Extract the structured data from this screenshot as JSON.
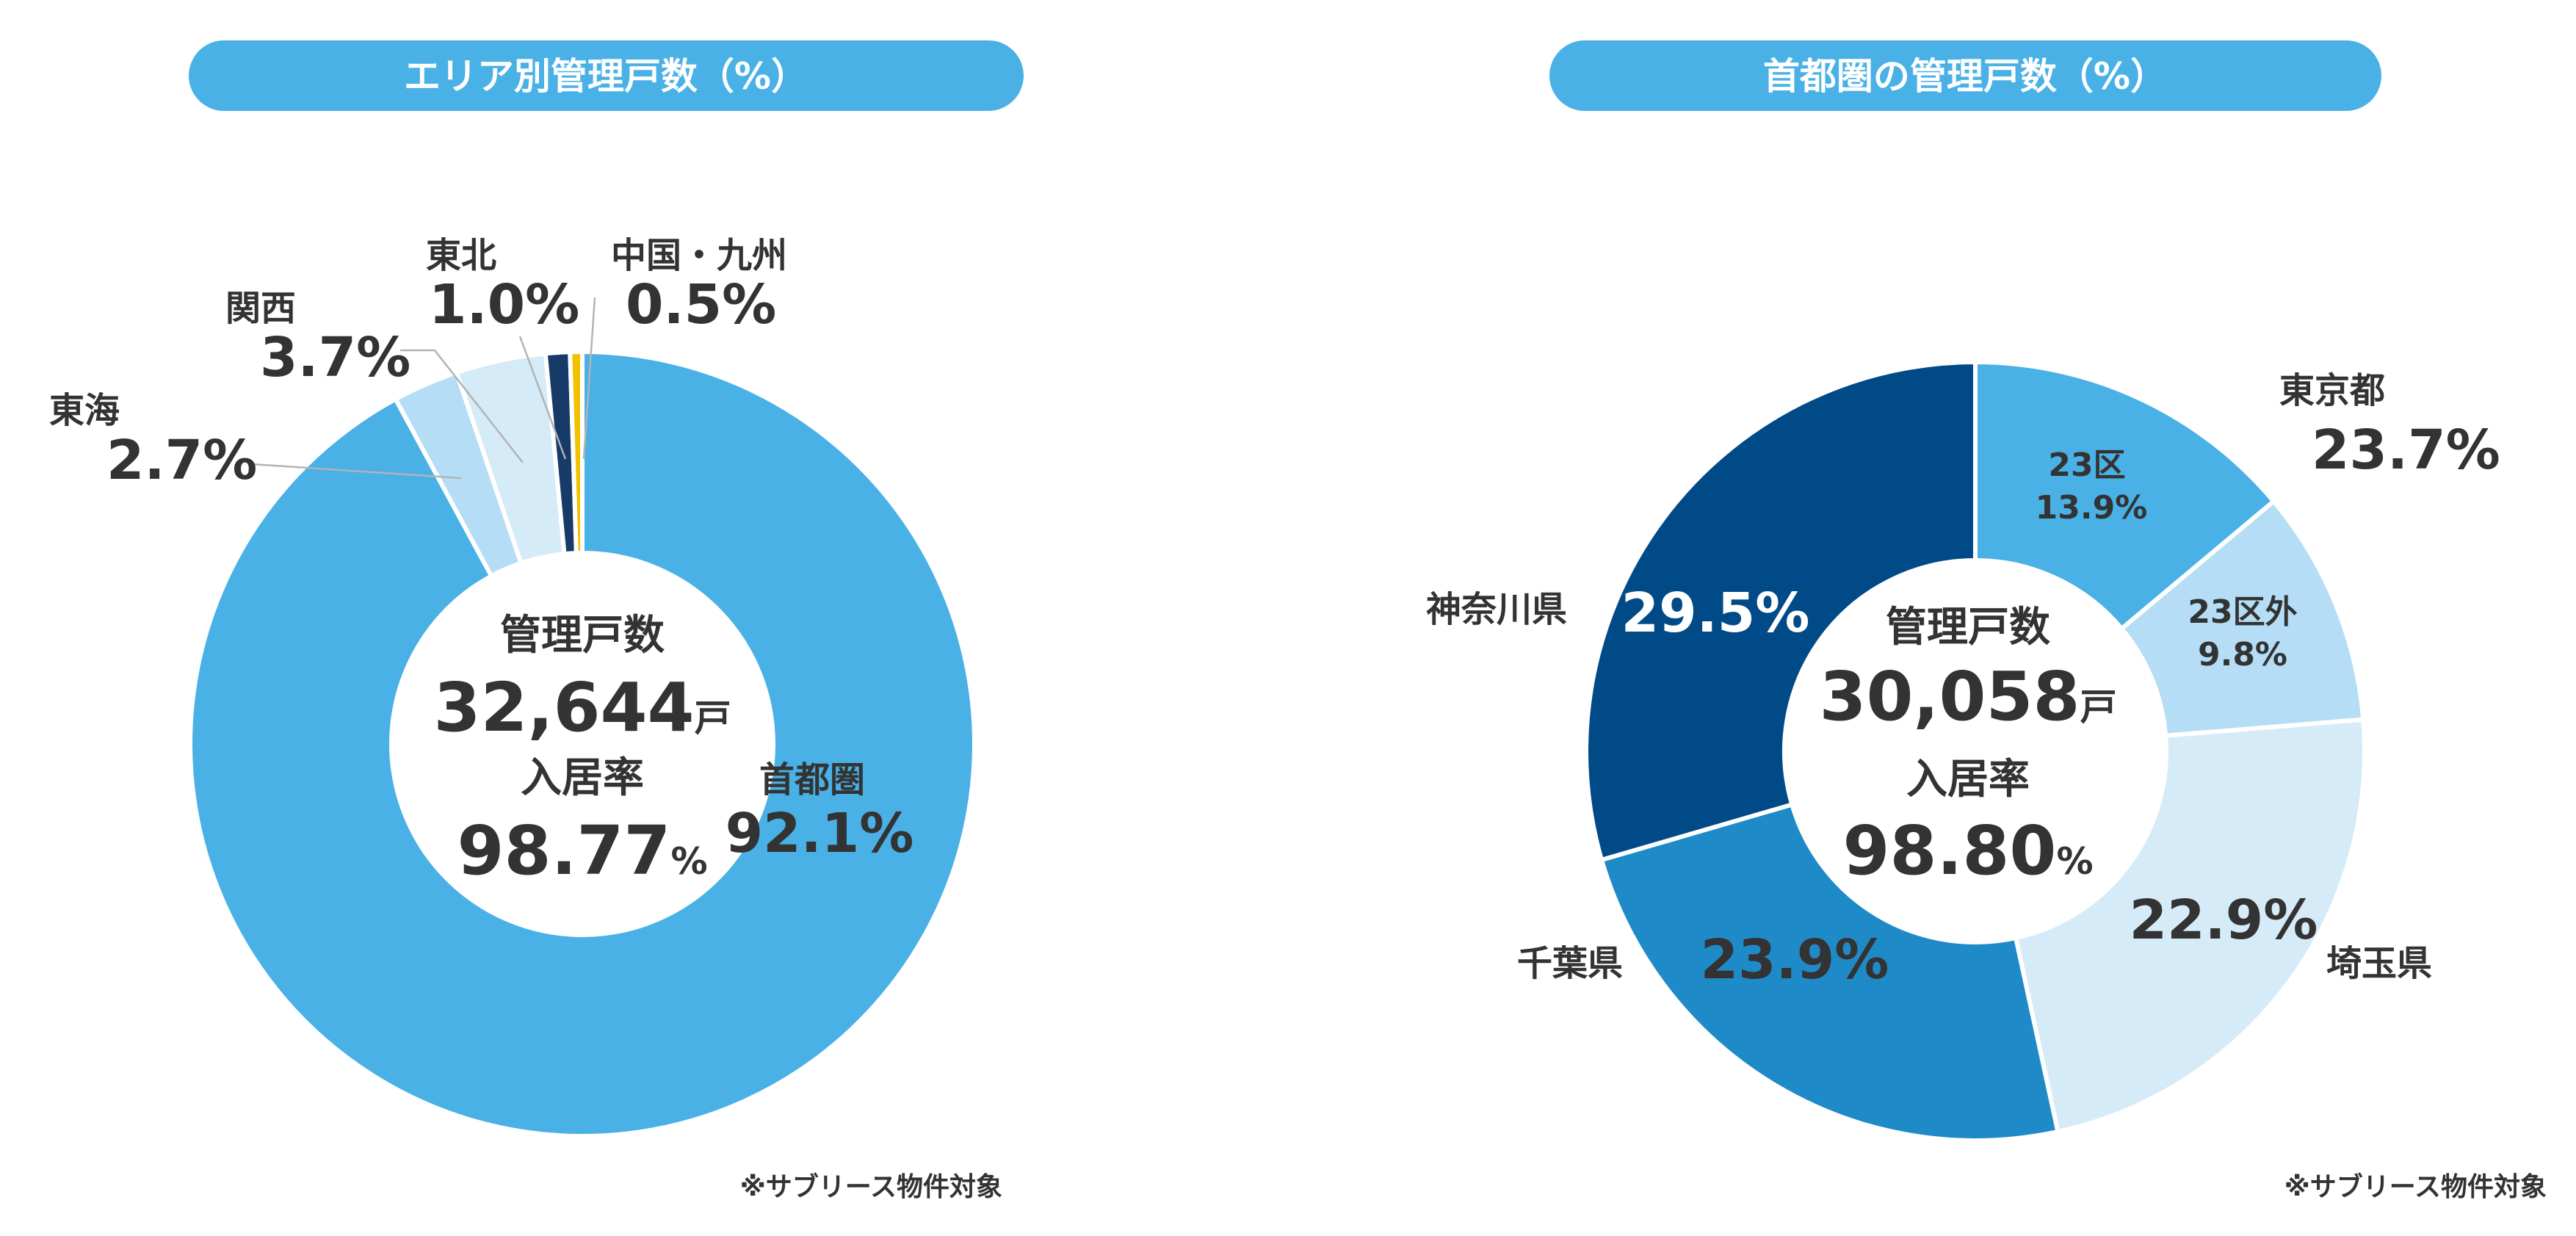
{
  "chart_data": [
    {
      "type": "pie",
      "variant": "donut",
      "title": "エリア別管理戸数（%）",
      "center": {
        "units_label": "管理戸数",
        "units_value": "32,644",
        "units_suffix": "戸",
        "occupancy_label": "入居率",
        "occupancy_value": "98.77",
        "occupancy_suffix": "%"
      },
      "slices": [
        {
          "name": "首都圏",
          "value": 92.1,
          "label": "92.1%",
          "color": "#49b1e6"
        },
        {
          "name": "東海",
          "value": 2.7,
          "label": "2.7%",
          "color": "#b5def6"
        },
        {
          "name": "関西",
          "value": 3.7,
          "label": "3.7%",
          "color": "#d5ebf8"
        },
        {
          "name": "東北",
          "value": 1.0,
          "label": "1.0%",
          "color": "#173a69"
        },
        {
          "name": "中国・九州",
          "value": 0.5,
          "label": "0.5%",
          "color": "#f2c200"
        }
      ],
      "note": "※サブリース物件対象"
    },
    {
      "type": "pie",
      "variant": "donut",
      "title": "首都圏の管理戸数（%）",
      "center": {
        "units_label": "管理戸数",
        "units_value": "30,058",
        "units_suffix": "戸",
        "occupancy_label": "入居率",
        "occupancy_value": "98.80",
        "occupancy_suffix": "%"
      },
      "slices": [
        {
          "name": "23区",
          "value": 13.9,
          "label": "13.9%",
          "color": "#49b1e6"
        },
        {
          "name": "23区外",
          "value": 9.8,
          "label": "9.8%",
          "color": "#b5def6"
        },
        {
          "name": "埼玉県",
          "value": 22.9,
          "label": "22.9%",
          "color": "#d5ebf8"
        },
        {
          "name": "千葉県",
          "value": 23.9,
          "label": "23.9%",
          "color": "#1e8bc8"
        },
        {
          "name": "神奈川県",
          "value": 29.5,
          "label": "29.5%",
          "color": "#004b87"
        }
      ],
      "group_label": {
        "name": "東京都",
        "value": 23.7,
        "label": "23.7%"
      },
      "note": "※サブリース物件対象"
    }
  ]
}
